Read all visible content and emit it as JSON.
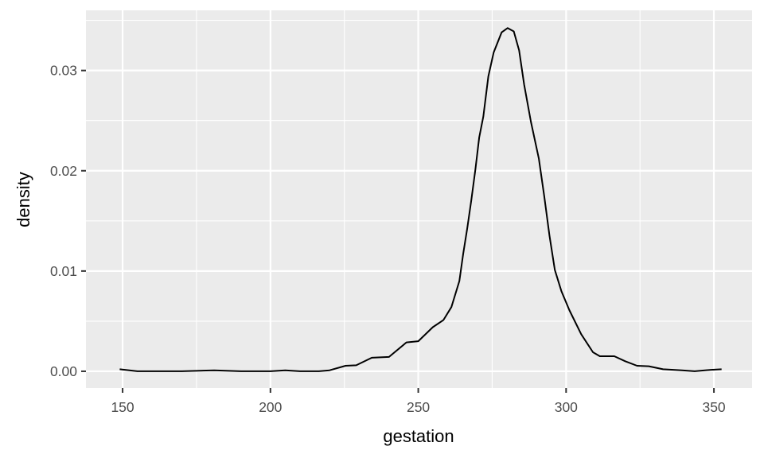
{
  "chart_data": {
    "type": "line",
    "title": "",
    "xlabel": "gestation",
    "ylabel": "density",
    "xlim": [
      137.6,
      362.9
    ],
    "ylim": [
      -0.00167,
      0.036
    ],
    "x_ticks": [
      150,
      200,
      250,
      300,
      350
    ],
    "x_tick_labels": [
      "150",
      "200",
      "250",
      "300",
      "350"
    ],
    "y_ticks": [
      0.0,
      0.01,
      0.02,
      0.03
    ],
    "y_tick_labels": [
      "0.00",
      "0.01",
      "0.02",
      "0.03"
    ],
    "x_minor": [
      175,
      225,
      275,
      325
    ],
    "y_minor": [
      0.005,
      0.015,
      0.025,
      0.035
    ],
    "grid": true,
    "panel_background": "#ebebeb",
    "grid_color": "#ffffff",
    "line_color": "#000000",
    "series": [
      {
        "x": [
          149,
          155,
          160,
          170,
          181,
          190,
          200,
          205,
          210,
          216.4,
          220,
          225.4,
          229,
          234.3,
          240.1,
          246,
          250,
          254.9,
          258.5,
          261.2,
          263.9,
          265.2,
          266.6,
          267.9,
          269.3,
          270.6,
          272,
          273.7,
          275.5,
          278.2,
          280.2,
          282.3,
          284.1,
          285.8,
          288.1,
          290.8,
          292.6,
          294.4,
          296.2,
          298.4,
          301.1,
          305.1,
          309.1,
          311.4,
          316.3,
          320,
          324,
          328,
          332.8,
          339.2,
          343.5,
          349,
          352.6
        ],
        "y": [
          0.0002,
          0.0,
          0.0,
          0.0,
          0.0001,
          0.0,
          0.0,
          0.0001,
          0.0,
          0.0,
          0.0001,
          0.00055,
          0.0006,
          0.00135,
          0.00143,
          0.00288,
          0.003,
          0.0044,
          0.0051,
          0.0064,
          0.009,
          0.0117,
          0.0143,
          0.017,
          0.0201,
          0.0233,
          0.0254,
          0.0294,
          0.0318,
          0.0338,
          0.03423,
          0.0339,
          0.032,
          0.0286,
          0.0249,
          0.0212,
          0.0175,
          0.0135,
          0.0101,
          0.008,
          0.0061,
          0.0037,
          0.0019,
          0.0015,
          0.0015,
          0.001,
          0.00055,
          0.0005,
          0.0002,
          0.0001,
          0.0,
          0.00015,
          0.0002
        ]
      }
    ]
  }
}
